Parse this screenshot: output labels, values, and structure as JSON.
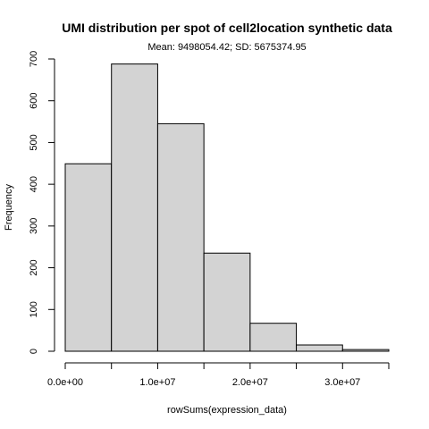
{
  "chart_data": {
    "type": "bar",
    "title": "UMI distribution per spot of cell2location synthetic data",
    "subtitle": "Mean: 9498054.42; SD: 5675374.95",
    "xlabel": "rowSums(expression_data)",
    "ylabel": "Frequency",
    "bins": [
      {
        "start": 0,
        "end": 5000000,
        "value": 449
      },
      {
        "start": 5000000,
        "end": 10000000,
        "value": 688
      },
      {
        "start": 10000000,
        "end": 15000000,
        "value": 545
      },
      {
        "start": 15000000,
        "end": 20000000,
        "value": 235
      },
      {
        "start": 20000000,
        "end": 25000000,
        "value": 67
      },
      {
        "start": 25000000,
        "end": 30000000,
        "value": 15
      },
      {
        "start": 30000000,
        "end": 35000000,
        "value": 4
      }
    ],
    "xlim": [
      0,
      35000000
    ],
    "ylim": [
      0,
      700
    ],
    "x_ticks": [
      {
        "value": 0,
        "label": "0.0e+00"
      },
      {
        "value": 5000000,
        "label": ""
      },
      {
        "value": 10000000,
        "label": "1.0e+07"
      },
      {
        "value": 15000000,
        "label": ""
      },
      {
        "value": 20000000,
        "label": "2.0e+07"
      },
      {
        "value": 25000000,
        "label": ""
      },
      {
        "value": 30000000,
        "label": "3.0e+07"
      },
      {
        "value": 35000000,
        "label": ""
      }
    ],
    "y_ticks": [
      {
        "value": 0,
        "label": "0"
      },
      {
        "value": 100,
        "label": "100"
      },
      {
        "value": 200,
        "label": "200"
      },
      {
        "value": 300,
        "label": "300"
      },
      {
        "value": 400,
        "label": "400"
      },
      {
        "value": 500,
        "label": "500"
      },
      {
        "value": 600,
        "label": "600"
      },
      {
        "value": 700,
        "label": "700"
      }
    ],
    "grid": false,
    "legend": "none",
    "colors": {
      "bar_fill": "#d3d3d3",
      "bar_stroke": "#000000"
    }
  }
}
